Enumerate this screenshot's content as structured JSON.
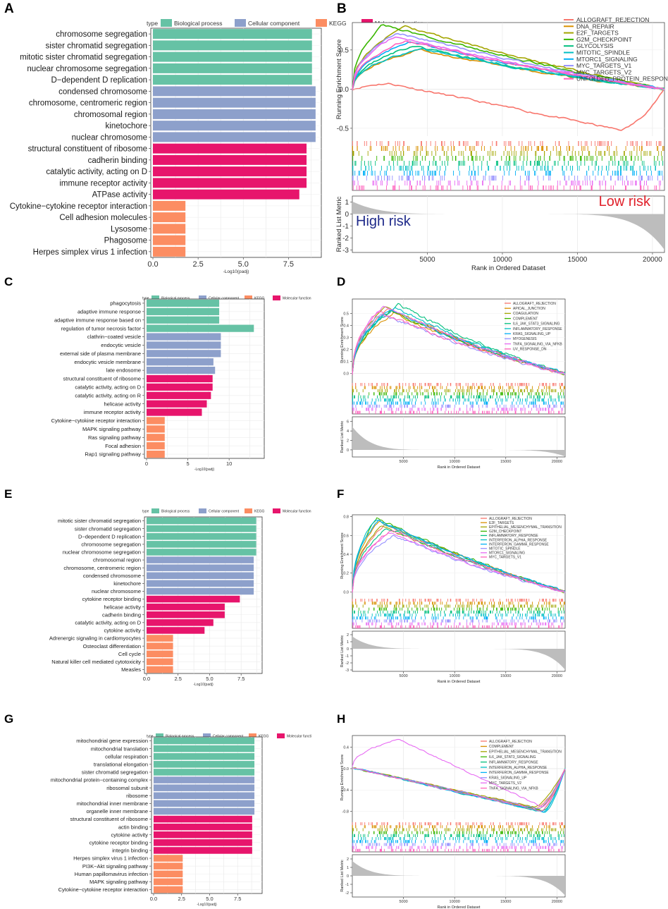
{
  "colors": {
    "Biological process": "#66C2A5",
    "Cellular component": "#8DA0CB",
    "KEGG": "#FC8D62",
    "Molecular function": "#E7156C"
  },
  "bar_legend": {
    "title": "type",
    "items": [
      "Biological process",
      "Cellular component",
      "KEGG",
      "Molecular function"
    ],
    "items_g": [
      "Biological process",
      "Cellular component",
      "KEGG",
      "Molecular functi"
    ]
  },
  "gsea_common": {
    "ylabel_top": "Running Enrichment Score",
    "ylabel_bottom": "Ranked List Metric",
    "xlabel": "Rank in Ordered Dataset",
    "xticks": [
      5000,
      10000,
      15000,
      20000
    ],
    "palette": [
      "#F8766D",
      "#D39200",
      "#93AA00",
      "#00BA38",
      "#00C19F",
      "#00B9E3",
      "#619CFF",
      "#DB72FB",
      "#FF61C3"
    ]
  },
  "chart_data": [
    {
      "panel": "A",
      "type": "bar",
      "orientation": "horizontal",
      "xlabel": "-Log10(padj)",
      "xlim": [
        0,
        9.2
      ],
      "xticks": [
        "0.0",
        "2.5",
        "5.0",
        "7.5"
      ],
      "categories": [
        "chromosome segregation",
        "sister chromatid segregation",
        "mitotic sister chromatid segregation",
        "nuclear chromosome segregation",
        "D−dependent D replication",
        "condensed chromosome",
        "chromosome, centromeric region",
        "chromosomal region",
        "kinetochore",
        "nuclear chromosome",
        "structural constituent of ribosome",
        "cadherin binding",
        "catalytic activity, acting on D",
        "immune receptor activity",
        "ATPase activity",
        "Cytokine−cytokine receptor interaction",
        "Cell adhesion molecules",
        "Lysosome",
        "Phagosome",
        "Herpes simplex virus 1 infection"
      ],
      "values": [
        8.8,
        8.8,
        8.8,
        8.8,
        8.8,
        9.0,
        9.0,
        9.0,
        9.0,
        9.0,
        8.5,
        8.5,
        8.5,
        8.5,
        8.1,
        1.8,
        1.8,
        1.8,
        1.8,
        1.8
      ],
      "groups": [
        "Biological process",
        "Biological process",
        "Biological process",
        "Biological process",
        "Biological process",
        "Cellular component",
        "Cellular component",
        "Cellular component",
        "Cellular component",
        "Cellular component",
        "Molecular function",
        "Molecular function",
        "Molecular function",
        "Molecular function",
        "Molecular function",
        "KEGG",
        "KEGG",
        "KEGG",
        "KEGG",
        "KEGG"
      ]
    },
    {
      "panel": "B",
      "type": "line",
      "annotations": {
        "high": "High risk",
        "low": "Low risk"
      },
      "ylim_es": [
        -0.6,
        0.85
      ],
      "yticks_es": [
        "0.5",
        "0.0",
        "-0.5"
      ],
      "ylim_metric": [
        -3.2,
        1.5
      ],
      "yticks_metric": [
        "1",
        "0",
        "-1",
        "-2",
        "-3"
      ],
      "series": [
        {
          "name": "ALLOGRAFT_REJECTION",
          "peak": 0.07,
          "peak_at": 2500,
          "trough": -0.52,
          "trough_at": 17800
        },
        {
          "name": "DNA_REPAIR",
          "peak": 0.5,
          "peak_at": 4500
        },
        {
          "name": "E2F_TARGETS",
          "peak": 0.8,
          "peak_at": 3500
        },
        {
          "name": "G2M_CHECKPOINT",
          "peak": 0.82,
          "peak_at": 2000
        },
        {
          "name": "GLYCOLYSIS",
          "peak": 0.55,
          "peak_at": 4000
        },
        {
          "name": "MITOTIC_SPINDLE",
          "peak": 0.52,
          "peak_at": 4600
        },
        {
          "name": "MTORC1_SIGNALING",
          "peak": 0.6,
          "peak_at": 3800
        },
        {
          "name": "MYC_TARGETS_V1",
          "peak": 0.72,
          "peak_at": 3000
        },
        {
          "name": "MYC_TARGETS_V2",
          "peak": 0.67,
          "peak_at": 2800
        },
        {
          "name": "UNFOLDED_PROTEIN_RESPONSE",
          "peak": 0.62,
          "peak_at": 3500
        }
      ]
    },
    {
      "panel": "C",
      "type": "bar",
      "orientation": "horizontal",
      "xlabel": "-Log10(padj)",
      "xlim": [
        0,
        14
      ],
      "xticks": [
        "0",
        "5",
        "10"
      ],
      "categories": [
        "phagocytosis",
        "adaptive immune response",
        "adaptive immune response based on",
        "regulation of tumor necrosis factor",
        "clathrin−coated vesicle",
        "endocytic vesicle",
        "external side of plasma membrane",
        "endocytic vesicle membrane",
        "late endosome",
        "structural constituent of ribosome",
        "catalytic activity, acting on D",
        "catalytic activity, acting on R",
        "helicase activity",
        "immune receptor activity",
        "Cytokine−cytokine receptor interaction",
        "MAPK signaling pathway",
        "Ras signaling pathway",
        "Focal adhesion",
        "Rap1 signaling pathway"
      ],
      "values": [
        8.8,
        8.8,
        8.8,
        13.0,
        9.0,
        9.0,
        9.0,
        8.1,
        8.3,
        8.0,
        8.0,
        7.8,
        7.3,
        6.7,
        2.2,
        2.2,
        2.2,
        2.2,
        2.2
      ],
      "groups": [
        "Biological process",
        "Biological process",
        "Biological process",
        "Biological process",
        "Cellular component",
        "Cellular component",
        "Cellular component",
        "Cellular component",
        "Cellular component",
        "Molecular function",
        "Molecular function",
        "Molecular function",
        "Molecular function",
        "Molecular function",
        "KEGG",
        "KEGG",
        "KEGG",
        "KEGG",
        "KEGG"
      ]
    },
    {
      "panel": "D",
      "type": "line",
      "ylim_es": [
        -0.06,
        0.62
      ],
      "yticks_es": [
        "0.5",
        "0.4",
        "0.3",
        "0.2",
        "0.1",
        "0.0"
      ],
      "ylim_metric": [
        -1.5,
        7
      ],
      "yticks_metric": [
        "6",
        "4",
        "2",
        "0"
      ],
      "series": [
        {
          "name": "ALLOGRAFT_REJECTION",
          "peak": 0.54,
          "peak_at": 3500
        },
        {
          "name": "APICAL_JUNCTION",
          "peak": 0.5,
          "peak_at": 4000
        },
        {
          "name": "COAGULATION",
          "peak": 0.55,
          "peak_at": 3200
        },
        {
          "name": "COMPLEMENT",
          "peak": 0.52,
          "peak_at": 3800
        },
        {
          "name": "IL6_JAK_STAT3_SIGNALING",
          "peak": 0.57,
          "peak_at": 4500
        },
        {
          "name": "INFLAMMATORY_RESPONSE",
          "peak": 0.55,
          "peak_at": 4200
        },
        {
          "name": "KRAS_SIGNALING_UP",
          "peak": 0.53,
          "peak_at": 3600
        },
        {
          "name": "MYOGENESIS",
          "peak": 0.5,
          "peak_at": 2800
        },
        {
          "name": "TNFA_SIGNALING_VIA_NFKB",
          "peak": 0.56,
          "peak_at": 3000
        },
        {
          "name": "UV_RESPONSE_DN",
          "peak": 0.52,
          "peak_at": 2500
        }
      ]
    },
    {
      "panel": "E",
      "type": "bar",
      "orientation": "horizontal",
      "xlabel": "-Log10(padj)",
      "xlim": [
        0,
        9
      ],
      "xticks": [
        "0.0",
        "2.5",
        "5.0",
        "7.5"
      ],
      "categories": [
        "mitotic sister chromatid segregation",
        "sister chromatid segregation",
        "D−dependent D replication",
        "chromosome segregation",
        "nuclear chromosome segregation",
        "chromosomal region",
        "chromosome, centromeric region",
        "condensed chromosome",
        "kinetochore",
        "nuclear chromosome",
        "cytokine receptor binding",
        "helicase activity",
        "cadherin binding",
        "catalytic activity, acting on D",
        "cytokine activity",
        "Adrenergic signaling in cardiomyocytes",
        "Osteoclast differentiation",
        "Cell cycle",
        "Natural killer cell mediated cytotoxicity",
        "Measles"
      ],
      "values": [
        8.7,
        8.7,
        8.7,
        8.7,
        8.7,
        8.5,
        8.5,
        8.5,
        8.5,
        8.5,
        7.4,
        6.2,
        6.2,
        5.3,
        4.6,
        2.1,
        2.1,
        2.1,
        2.1,
        2.1
      ],
      "groups": [
        "Biological process",
        "Biological process",
        "Biological process",
        "Biological process",
        "Biological process",
        "Cellular component",
        "Cellular component",
        "Cellular component",
        "Cellular component",
        "Cellular component",
        "Molecular function",
        "Molecular function",
        "Molecular function",
        "Molecular function",
        "Molecular function",
        "KEGG",
        "KEGG",
        "KEGG",
        "KEGG",
        "KEGG"
      ]
    },
    {
      "panel": "F",
      "type": "line",
      "ylim_es": [
        -0.05,
        0.82
      ],
      "yticks_es": [
        "0.8",
        "0.6",
        "0.4",
        "0.2",
        "0.0"
      ],
      "ylim_metric": [
        -3.2,
        2.5
      ],
      "yticks_metric": [
        "2",
        "1",
        "0",
        "-1",
        "-2",
        "-3"
      ],
      "series": [
        {
          "name": "ALLOGRAFT_REJECTION",
          "peak": 0.72,
          "peak_at": 3200
        },
        {
          "name": "E2F_TARGETS",
          "peak": 0.75,
          "peak_at": 2600
        },
        {
          "name": "EPITHELIAL_MESENCHYMAL_TRANSITION",
          "peak": 0.7,
          "peak_at": 2800
        },
        {
          "name": "G2M_CHECKPOINT",
          "peak": 0.78,
          "peak_at": 2400
        },
        {
          "name": "INFLAMMATORY_RESPONSE",
          "peak": 0.68,
          "peak_at": 3400
        },
        {
          "name": "INTERFERON_ALPHA_RESPONSE",
          "peak": 0.77,
          "peak_at": 2200
        },
        {
          "name": "INTERFERON_GAMMA_RESPONSE",
          "peak": 0.76,
          "peak_at": 2500
        },
        {
          "name": "MITOTIC_SPINDLE",
          "peak": 0.6,
          "peak_at": 4000
        },
        {
          "name": "MTORC1_SIGNALING",
          "peak": 0.63,
          "peak_at": 3600
        },
        {
          "name": "MYC_TARGETS_V1",
          "peak": 0.66,
          "peak_at": 3800
        }
      ]
    },
    {
      "panel": "G",
      "type": "bar",
      "orientation": "horizontal",
      "xlabel": "-Log10(padj)",
      "xlim": [
        0,
        9.5
      ],
      "xticks": [
        "0.0",
        "2.5",
        "5.0",
        "7.5"
      ],
      "categories": [
        "mitochondrial gene expression",
        "mitochondrial translation",
        "cellular respiration",
        "translational elongation",
        "sister chromatid segregation",
        "mitochondrial protein−containing complex",
        "ribosomal subunit",
        "ribosome",
        "mitochondrial inner membrane",
        "organelle inner membrane",
        "structural constituent of ribosome",
        "actin binding",
        "cytokine activity",
        "cytokine receptor binding",
        "integrin binding",
        "Herpes simplex virus 1 infection",
        "PI3K−Akt signaling pathway",
        "Human papillomavirus infection",
        "MAPK signaling pathway",
        "Cytokine−cytokine receptor interaction"
      ],
      "values": [
        9.0,
        9.0,
        9.0,
        9.0,
        9.0,
        9.0,
        9.0,
        9.0,
        9.0,
        9.0,
        8.8,
        8.8,
        8.8,
        8.8,
        8.8,
        2.6,
        2.6,
        2.6,
        2.6,
        2.6
      ],
      "groups": [
        "Biological process",
        "Biological process",
        "Biological process",
        "Biological process",
        "Biological process",
        "Cellular component",
        "Cellular component",
        "Cellular component",
        "Cellular component",
        "Cellular component",
        "Molecular function",
        "Molecular function",
        "Molecular function",
        "Molecular function",
        "Molecular function",
        "KEGG",
        "KEGG",
        "KEGG",
        "KEGG",
        "KEGG"
      ]
    },
    {
      "panel": "H",
      "type": "line",
      "ylim_es": [
        -0.95,
        0.62
      ],
      "yticks_es": [
        "0.4",
        "0.0",
        "-0.4",
        "-0.8"
      ],
      "ylim_metric": [
        -2.5,
        2.5
      ],
      "yticks_metric": [
        "2",
        "1",
        "0",
        "-1",
        "-2"
      ],
      "series": [
        {
          "name": "ALLOGRAFT_REJECTION",
          "trough": -0.74,
          "trough_at": 18000
        },
        {
          "name": "COMPLEMENT",
          "trough": -0.76,
          "trough_at": 18200
        },
        {
          "name": "EPITHELIAL_MESENCHYMAL_TRANSITION",
          "trough": -0.72,
          "trough_at": 17800
        },
        {
          "name": "IL6_JAK_STAT3_SIGNALING",
          "trough": -0.78,
          "trough_at": 18500
        },
        {
          "name": "INFLAMMATORY_RESPONSE",
          "trough": -0.8,
          "trough_at": 18600
        },
        {
          "name": "INTERFERON_ALPHA_RESPONSE",
          "trough": -0.82,
          "trough_at": 18800
        },
        {
          "name": "INTERFERON_GAMMA_RESPONSE",
          "trough": -0.81,
          "trough_at": 18700
        },
        {
          "name": "KRAS_SIGNALING_UP",
          "trough": -0.75,
          "trough_at": 18100
        },
        {
          "name": "MYC_TARGETS_V2",
          "peak": 0.55,
          "peak_at": 4500
        },
        {
          "name": "TNFA_SIGNALING_VIA_NFKB",
          "trough": -0.79,
          "trough_at": 18400
        }
      ]
    }
  ]
}
